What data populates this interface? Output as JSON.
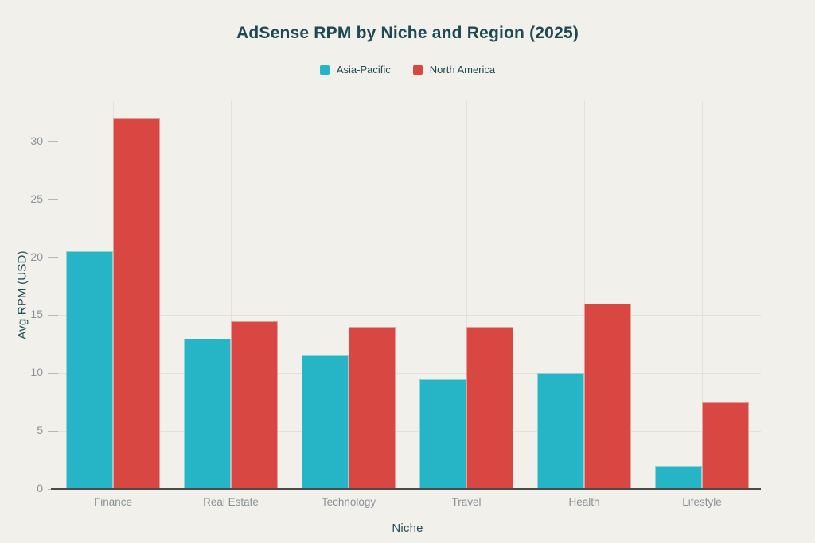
{
  "chart_data": {
    "type": "bar",
    "title": "AdSense RPM by Niche and Region (2025)",
    "xlabel": "Niche",
    "ylabel": "Avg RPM (USD)",
    "categories": [
      "Finance",
      "Real Estate",
      "Technology",
      "Travel",
      "Health",
      "Lifestyle"
    ],
    "series": [
      {
        "name": "Asia-Pacific",
        "color": "#25b5c7",
        "values": [
          20.5,
          13,
          11.5,
          9.5,
          10,
          2
        ]
      },
      {
        "name": "North America",
        "color": "#d94743",
        "values": [
          32,
          14.5,
          14,
          14,
          16,
          7.5
        ]
      }
    ],
    "yticks": [
      0,
      5,
      10,
      15,
      20,
      25,
      30
    ],
    "ylim": [
      0,
      33.5
    ],
    "grid": true,
    "legend_position": "top-center"
  },
  "colors": {
    "background": "#f1f0ea",
    "title_text": "#1e4852",
    "axis_title_text": "#234e59",
    "tick_label_text": "#8c9298",
    "gridline": "#e2e1d9",
    "axis_line": "#4b4b4b",
    "series_asia_pacific": "#25b5c7",
    "series_north_america": "#d94743"
  }
}
